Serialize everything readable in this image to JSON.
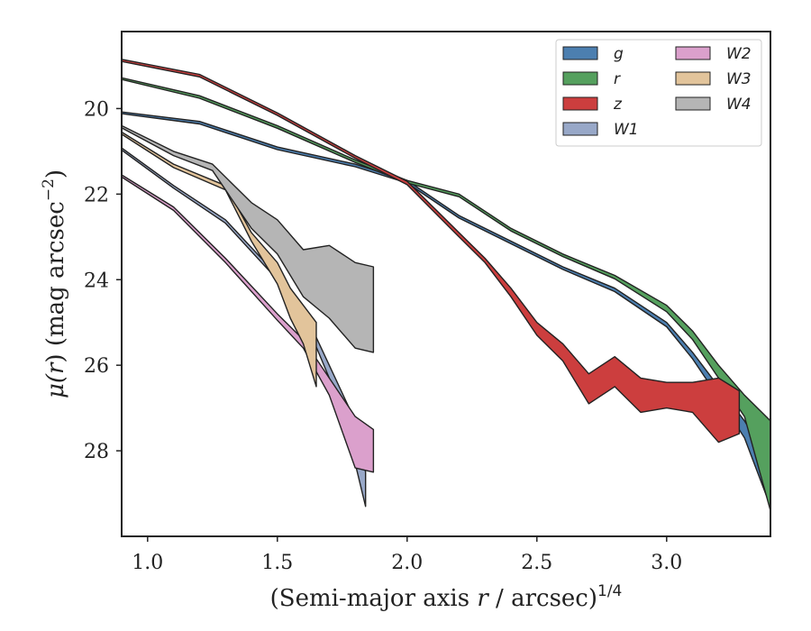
{
  "chart_data": {
    "type": "area",
    "xlabel": "(Semi-major axis r / arcsec)^1/4",
    "xlabel_parts": {
      "pre": "(Semi-major axis ",
      "var": "r",
      "post": " / arcsec)",
      "sup": "1/4"
    },
    "ylabel": "μ(r) (mag arcsec^−2)",
    "ylabel_parts": {
      "pre": "μ(",
      "var": "r",
      "post": ") (mag arcsec",
      "sup": "−2",
      "end": ")"
    },
    "xlim": [
      0.9,
      3.4
    ],
    "ylim": [
      30.0,
      18.2
    ],
    "y_inverted": true,
    "xticks": [
      1.0,
      1.5,
      2.0,
      2.5,
      3.0
    ],
    "xtick_labels": [
      "1.0",
      "1.5",
      "2.0",
      "2.5",
      "3.0"
    ],
    "yticks": [
      20,
      22,
      24,
      26,
      28
    ],
    "ytick_labels": [
      "20",
      "22",
      "24",
      "26",
      "28"
    ],
    "grid": false,
    "legend_placement": "top-right",
    "legend_columns": 2,
    "series": [
      {
        "name": "g",
        "color": "#4c7fb0",
        "band": [
          [
            0.9,
            20.08,
            20.12
          ],
          [
            1.2,
            20.3,
            20.36
          ],
          [
            1.5,
            20.9,
            20.96
          ],
          [
            1.8,
            21.3,
            21.36
          ],
          [
            2.0,
            21.68,
            21.74
          ],
          [
            2.2,
            22.5,
            22.56
          ],
          [
            2.4,
            23.1,
            23.16
          ],
          [
            2.6,
            23.7,
            23.76
          ],
          [
            2.8,
            24.2,
            24.28
          ],
          [
            3.0,
            25.0,
            25.1
          ],
          [
            3.1,
            25.7,
            25.85
          ],
          [
            3.2,
            26.5,
            26.75
          ],
          [
            3.3,
            27.3,
            27.7
          ],
          [
            3.4,
            28.3,
            29.3
          ]
        ]
      },
      {
        "name": "r",
        "color": "#55a05e",
        "band": [
          [
            0.9,
            19.28,
            19.32
          ],
          [
            1.2,
            19.7,
            19.76
          ],
          [
            1.5,
            20.4,
            20.46
          ],
          [
            1.8,
            21.2,
            21.26
          ],
          [
            2.0,
            21.68,
            21.74
          ],
          [
            2.2,
            22.0,
            22.06
          ],
          [
            2.4,
            22.8,
            22.86
          ],
          [
            2.6,
            23.4,
            23.46
          ],
          [
            2.8,
            23.9,
            23.98
          ],
          [
            3.0,
            24.6,
            24.75
          ],
          [
            3.1,
            25.2,
            25.4
          ],
          [
            3.2,
            26.0,
            26.3
          ],
          [
            3.3,
            26.7,
            27.2
          ],
          [
            3.4,
            27.3,
            29.4
          ]
        ]
      },
      {
        "name": "z",
        "color": "#cc3e3e",
        "band": [
          [
            0.9,
            18.85,
            18.9
          ],
          [
            1.2,
            19.2,
            19.26
          ],
          [
            1.5,
            20.1,
            20.16
          ],
          [
            1.8,
            21.1,
            21.16
          ],
          [
            2.0,
            21.7,
            21.78
          ],
          [
            2.2,
            22.9,
            23.0
          ],
          [
            2.3,
            23.5,
            23.6
          ],
          [
            2.4,
            24.2,
            24.4
          ],
          [
            2.5,
            25.0,
            25.3
          ],
          [
            2.6,
            25.5,
            25.9
          ],
          [
            2.7,
            26.2,
            26.9
          ],
          [
            2.8,
            25.8,
            26.5
          ],
          [
            2.9,
            26.3,
            27.1
          ],
          [
            3.0,
            26.4,
            27.0
          ],
          [
            3.1,
            26.4,
            27.1
          ],
          [
            3.2,
            26.3,
            27.8
          ],
          [
            3.28,
            26.6,
            27.6
          ]
        ]
      },
      {
        "name": "W1",
        "color": "#98a8c8",
        "band": [
          [
            0.9,
            20.92,
            20.97
          ],
          [
            1.1,
            21.8,
            21.86
          ],
          [
            1.3,
            22.6,
            22.68
          ],
          [
            1.5,
            23.9,
            24.0
          ],
          [
            1.6,
            24.7,
            24.85
          ],
          [
            1.7,
            26.0,
            26.3
          ],
          [
            1.8,
            27.3,
            28.3
          ],
          [
            1.84,
            28.5,
            29.3
          ]
        ]
      },
      {
        "name": "W2",
        "color": "#dba0cc",
        "band": [
          [
            0.9,
            21.55,
            21.6
          ],
          [
            1.1,
            22.3,
            22.38
          ],
          [
            1.3,
            23.5,
            23.6
          ],
          [
            1.5,
            24.8,
            24.95
          ],
          [
            1.6,
            25.4,
            25.6
          ],
          [
            1.7,
            26.3,
            26.7
          ],
          [
            1.8,
            27.2,
            28.4
          ],
          [
            1.87,
            27.5,
            28.5
          ]
        ]
      },
      {
        "name": "W3",
        "color": "#e2c49b",
        "band": [
          [
            0.9,
            20.55,
            20.6
          ],
          [
            1.1,
            21.3,
            21.38
          ],
          [
            1.3,
            21.8,
            21.9
          ],
          [
            1.4,
            22.9,
            23.1
          ],
          [
            1.5,
            23.6,
            24.1
          ],
          [
            1.55,
            24.2,
            24.9
          ],
          [
            1.6,
            24.6,
            25.5
          ],
          [
            1.65,
            25.0,
            26.5
          ]
        ]
      },
      {
        "name": "W4",
        "color": "#b5b5b5",
        "band": [
          [
            0.9,
            20.4,
            20.45
          ],
          [
            1.1,
            21.0,
            21.1
          ],
          [
            1.25,
            21.3,
            21.45
          ],
          [
            1.4,
            22.2,
            22.8
          ],
          [
            1.5,
            22.6,
            23.4
          ],
          [
            1.6,
            23.3,
            24.4
          ],
          [
            1.7,
            23.2,
            24.9
          ],
          [
            1.8,
            23.6,
            25.6
          ],
          [
            1.87,
            23.7,
            25.7
          ]
        ]
      }
    ]
  }
}
